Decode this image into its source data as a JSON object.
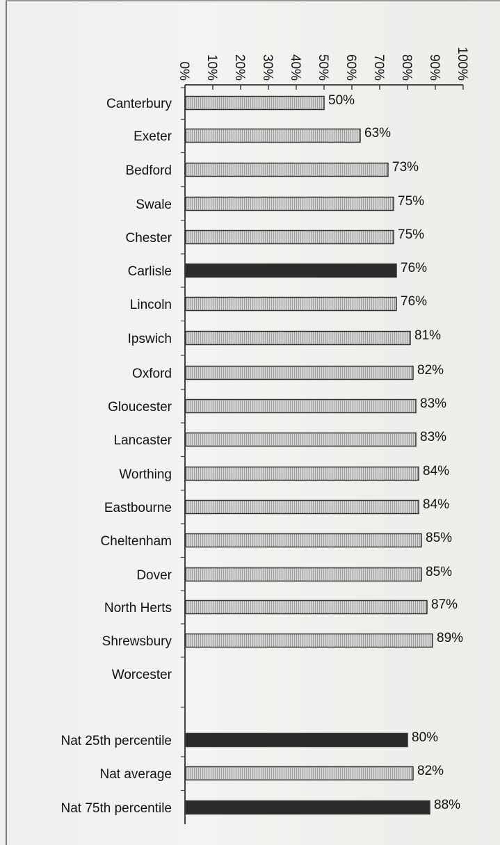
{
  "chart_data": {
    "type": "bar",
    "orientation": "horizontal",
    "title": "",
    "xlabel": "",
    "ylabel": "",
    "xlim": [
      0,
      100
    ],
    "x_ticks": [
      "0%",
      "10%",
      "20%",
      "30%",
      "40%",
      "50%",
      "60%",
      "70%",
      "80%",
      "90%",
      "100%"
    ],
    "grid": false,
    "legend": "none",
    "categories": [
      "Canterbury",
      "Exeter",
      "Bedford",
      "Swale",
      "Chester",
      "Carlisle",
      "Lincoln",
      "Ipswich",
      "Oxford",
      "Gloucester",
      "Lancaster",
      "Worthing",
      "Eastbourne",
      "Cheltenham",
      "Dover",
      "North Herts",
      "Shrewsbury",
      "Worcester",
      "Nat 25th percentile",
      "Nat average",
      "Nat 75th percentile"
    ],
    "values": [
      50,
      63,
      73,
      75,
      75,
      76,
      76,
      81,
      82,
      83,
      83,
      84,
      84,
      85,
      85,
      87,
      89,
      null,
      80,
      82,
      88
    ],
    "value_labels": [
      "50%",
      "63%",
      "73%",
      "75%",
      "75%",
      "76%",
      "76%",
      "81%",
      "82%",
      "83%",
      "83%",
      "84%",
      "84%",
      "85%",
      "85%",
      "87%",
      "89%",
      "",
      "80%",
      "82%",
      "88%"
    ],
    "bar_styles": [
      "hatched",
      "hatched",
      "hatched",
      "hatched",
      "hatched",
      "solid",
      "hatched",
      "hatched",
      "hatched",
      "hatched",
      "hatched",
      "hatched",
      "hatched",
      "hatched",
      "hatched",
      "hatched",
      "hatched",
      "none",
      "solid",
      "hatched",
      "solid"
    ],
    "colors": {
      "hatched_fill": "#d4d4d2",
      "hatched_stripe": "#9d9d9b",
      "solid_fill": "#2b2b2b",
      "bar_border": "#333333",
      "axis": "#444444"
    }
  }
}
